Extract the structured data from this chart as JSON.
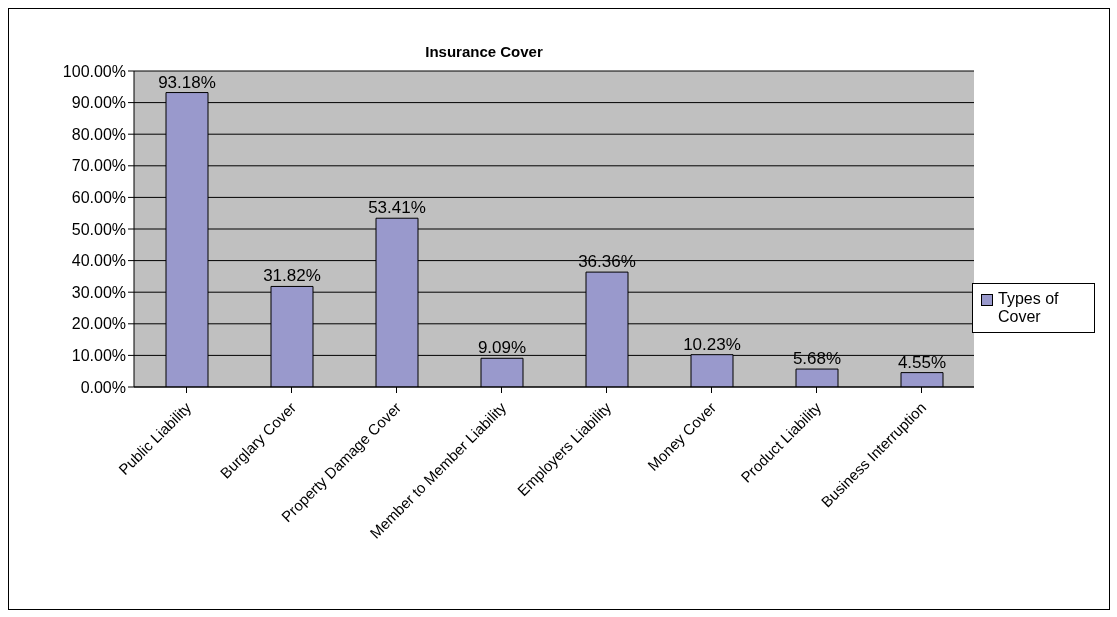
{
  "chart_data": {
    "type": "bar",
    "title": "Insurance Cover",
    "categories": [
      "Public Liability",
      "Burglary Cover",
      "Property Damage Cover",
      "Member to Member Liability",
      "Employers Liability",
      "Money Cover",
      "Product Liability",
      "Business Interruption"
    ],
    "series": [
      {
        "name": "Types of Cover",
        "color": "#9999cc",
        "values": [
          93.18,
          31.82,
          53.41,
          9.09,
          36.36,
          10.23,
          5.68,
          4.55
        ],
        "value_labels": [
          "93.18%",
          "31.82%",
          "53.41%",
          "9.09%",
          "36.36%",
          "10.23%",
          "5.68%",
          "4.55%"
        ]
      }
    ],
    "ylim": [
      0,
      100
    ],
    "yticks": [
      {
        "value": 0,
        "label": "0.00%"
      },
      {
        "value": 10,
        "label": "10.00%"
      },
      {
        "value": 20,
        "label": "20.00%"
      },
      {
        "value": 30,
        "label": "30.00%"
      },
      {
        "value": 40,
        "label": "40.00%"
      },
      {
        "value": 50,
        "label": "50.00%"
      },
      {
        "value": 60,
        "label": "60.00%"
      },
      {
        "value": 70,
        "label": "70.00%"
      },
      {
        "value": 80,
        "label": "80.00%"
      },
      {
        "value": 90,
        "label": "90.00%"
      },
      {
        "value": 100,
        "label": "100.00%"
      }
    ],
    "grid": "y",
    "legend": "right"
  }
}
